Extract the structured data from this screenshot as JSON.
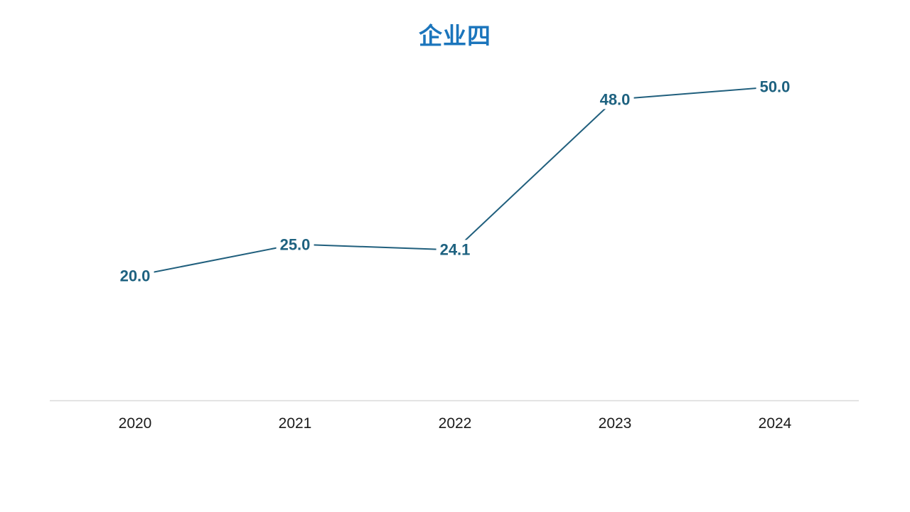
{
  "page": {
    "background": "#ffffff"
  },
  "chart": {
    "title_color": "#1B75BC",
    "series_color": "#205F7D",
    "label_color": "#1E6280",
    "axis_line_color": "#D9D9D9",
    "tick_label_color": "#1A1A1A"
  },
  "chart_data": {
    "type": "line",
    "title": "企业四",
    "categories": [
      "2020",
      "2021",
      "2022",
      "2023",
      "2024"
    ],
    "values": [
      20.0,
      25.0,
      24.1,
      48.0,
      50.0
    ],
    "point_labels": [
      "20.0",
      "25.0",
      "24.1",
      "48.0",
      "50.0"
    ],
    "series": [
      {
        "name": "企业四",
        "values": [
          20.0,
          25.0,
          24.1,
          48.0,
          50.0
        ]
      }
    ],
    "xlabel": "",
    "ylabel": "",
    "ylim": [
      0,
      63.5
    ],
    "grid": false,
    "legend_position": "none",
    "y_axis_visible": false,
    "x_axis_visible": true,
    "label_position": "on-point-white-box"
  }
}
